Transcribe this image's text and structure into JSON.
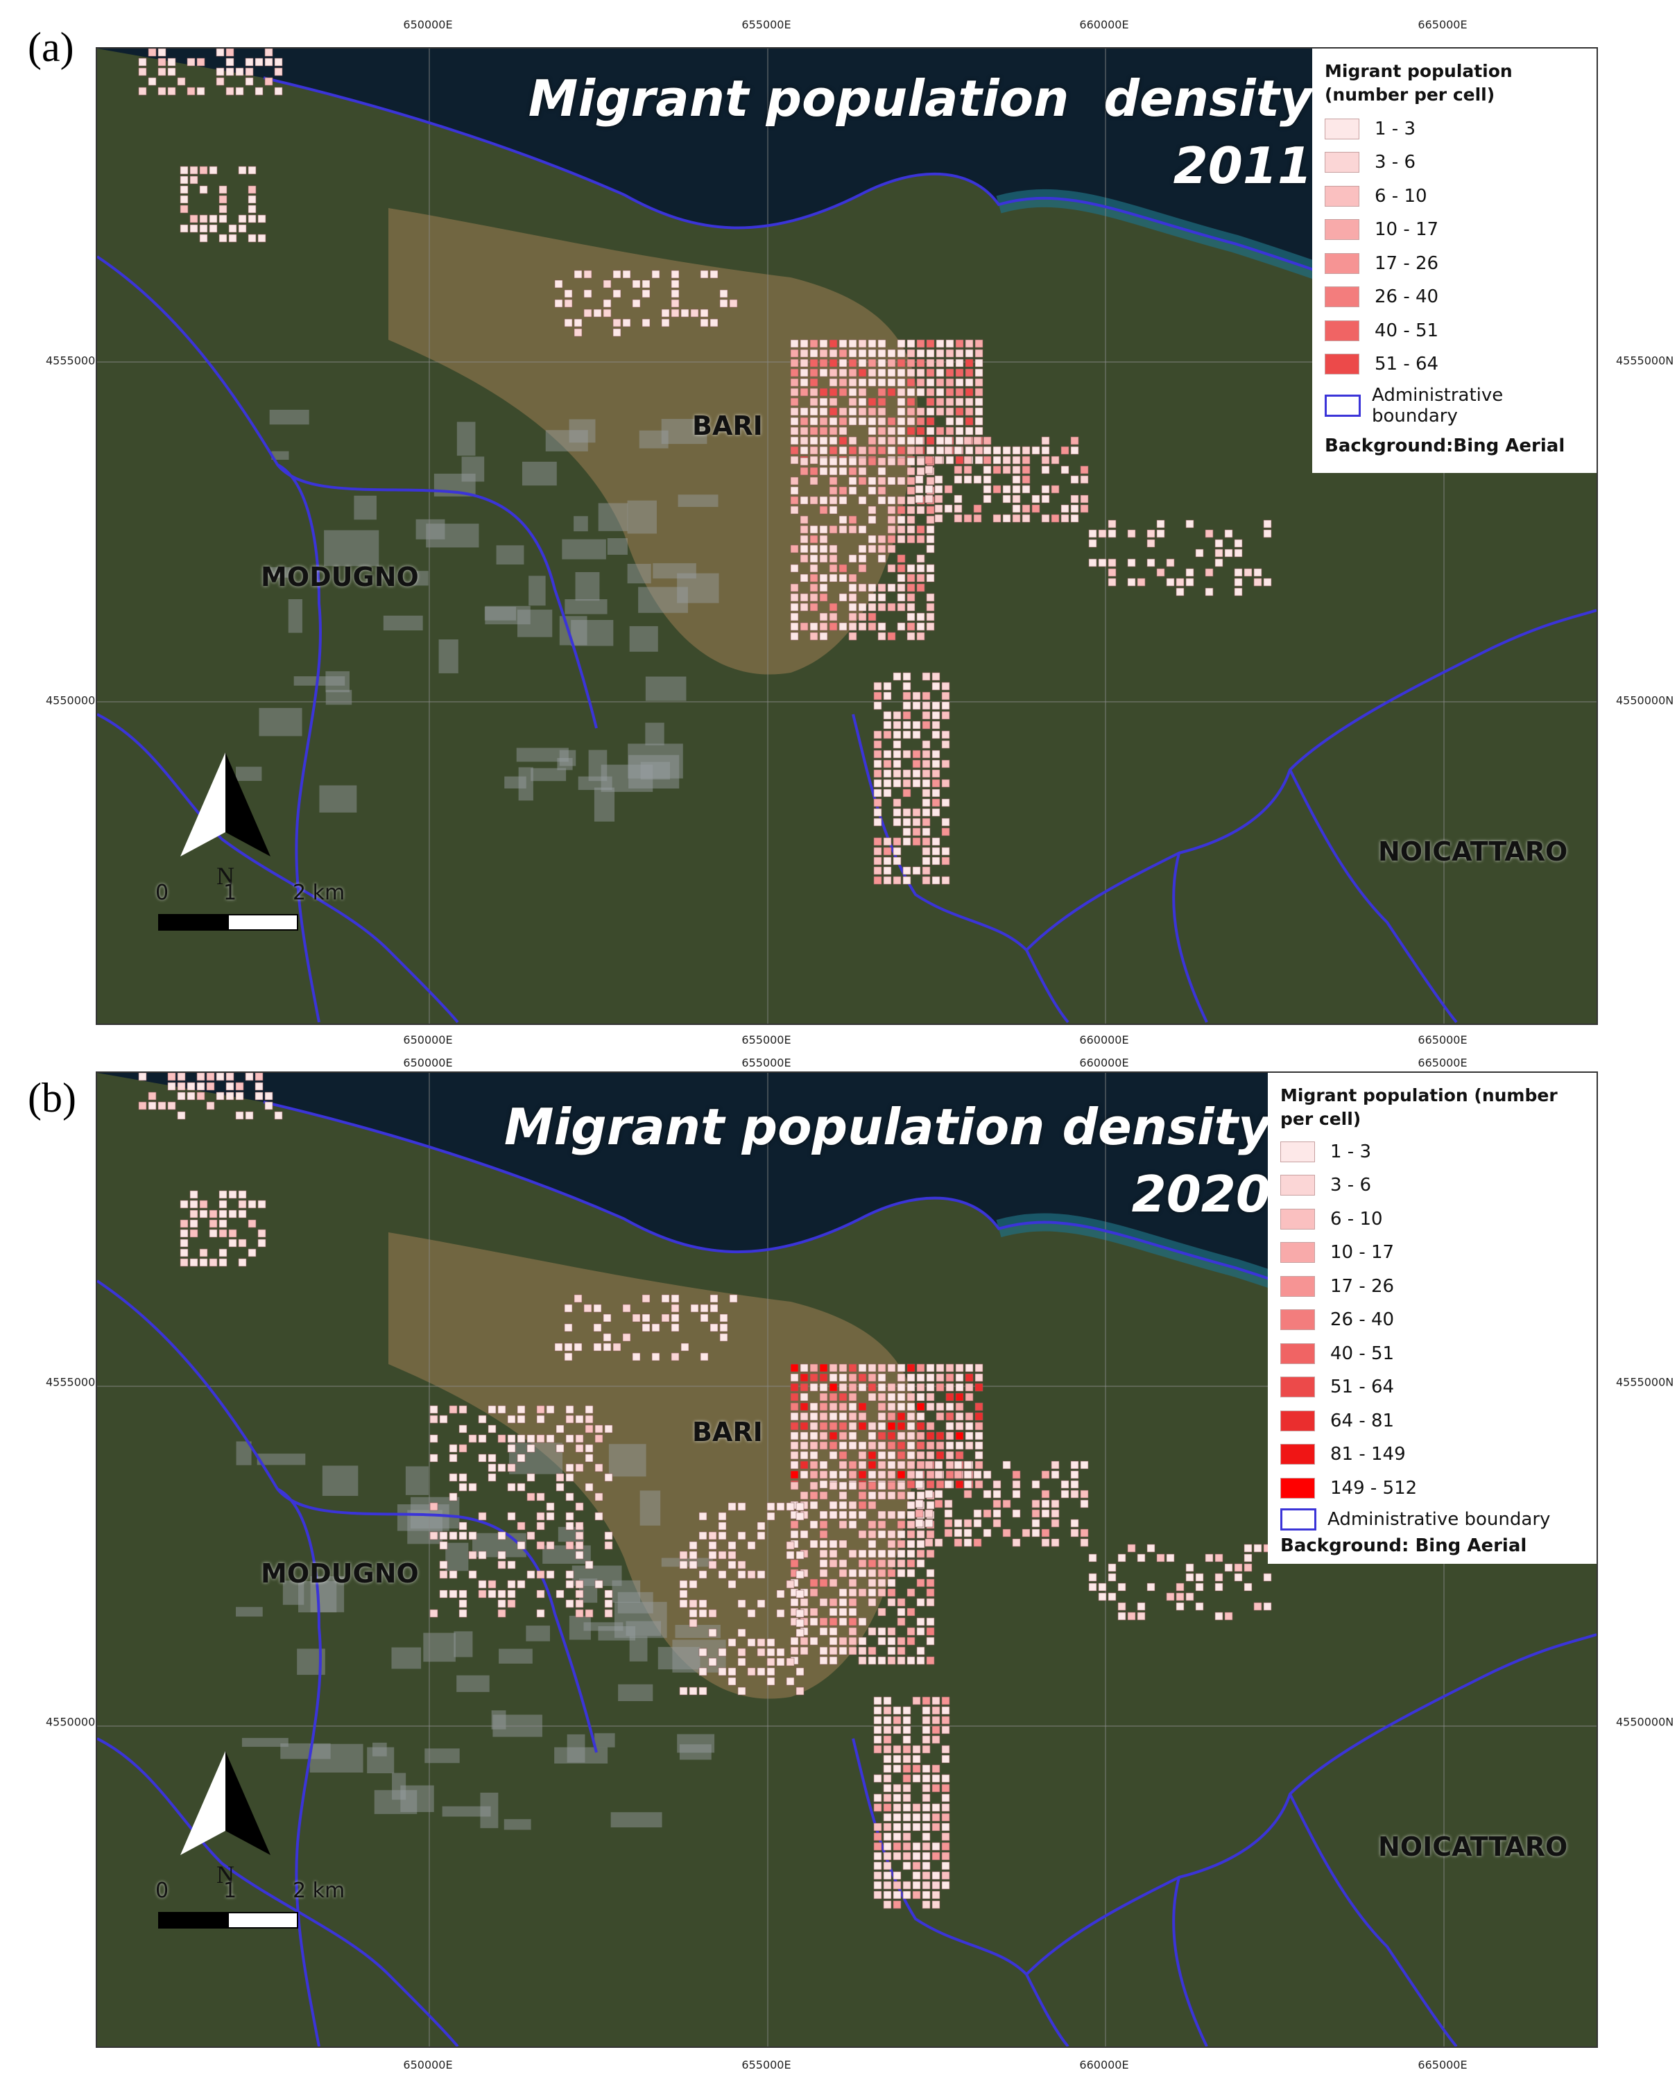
{
  "colors": {
    "sea": "#0d1f2e",
    "land": "#3c4a2c",
    "urban": "#7a6b45",
    "boundary": "#3b34d8"
  },
  "icons": {
    "north_arrow": "north-arrow-icon",
    "scale_bar": "scale-bar-icon"
  },
  "axes": {
    "eastings": [
      "650000E",
      "655000E",
      "660000E",
      "665000E"
    ],
    "northings": [
      "4555000N",
      "4550000N"
    ]
  },
  "places": {
    "bari": "BARI",
    "modugno": "MODUGNO",
    "noicattaro": "NOICATTARO"
  },
  "scale": {
    "zero": "0",
    "one": "1",
    "two": "2 km"
  },
  "north_label": "N",
  "panels": [
    {
      "label": "(a)",
      "title_line1": "Migrant population  density",
      "title_line2": "2011",
      "legend": {
        "title": "Migrant population (number per cell)",
        "classes": [
          {
            "label": "1 - 3",
            "color": "#fde8e8"
          },
          {
            "label": "3 - 6",
            "color": "#fbd6d6"
          },
          {
            "label": "6 - 10",
            "color": "#fac0c0"
          },
          {
            "label": "10 - 17",
            "color": "#f8aaaa"
          },
          {
            "label": "17 - 26",
            "color": "#f69494"
          },
          {
            "label": "26 - 40",
            "color": "#f37d7d"
          },
          {
            "label": "40 - 51",
            "color": "#f06464"
          },
          {
            "label": "51 - 64",
            "color": "#ec4a4a"
          }
        ],
        "boundary_label": "Administrative boundary",
        "background_label": "Background:Bing Aerial"
      }
    },
    {
      "label": "(b)",
      "title_line1": "Migrant population density",
      "title_line2": "2020",
      "legend": {
        "title": "Migrant population (number per cell)",
        "classes": [
          {
            "label": "1 - 3",
            "color": "#fde8e8"
          },
          {
            "label": "3 - 6",
            "color": "#fbd6d6"
          },
          {
            "label": "6 - 10",
            "color": "#fac0c0"
          },
          {
            "label": "10 - 17",
            "color": "#f8aaaa"
          },
          {
            "label": "17 - 26",
            "color": "#f69494"
          },
          {
            "label": "26 - 40",
            "color": "#f37d7d"
          },
          {
            "label": "40 - 51",
            "color": "#f06464"
          },
          {
            "label": "51 - 64",
            "color": "#ec4a4a"
          },
          {
            "label": "64 - 81",
            "color": "#ea2e2e"
          },
          {
            "label": "81 - 149",
            "color": "#f01515"
          },
          {
            "label": "149 - 512",
            "color": "#ff0000"
          }
        ],
        "boundary_label": "Administrative boundary",
        "background_label": "Background: Bing Aerial"
      }
    }
  ]
}
